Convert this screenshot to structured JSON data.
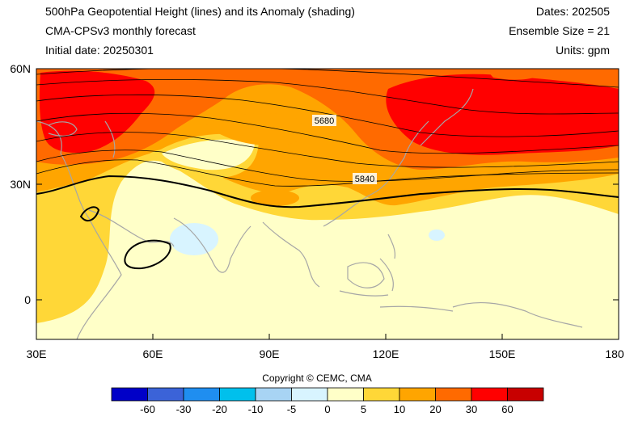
{
  "header": {
    "title_line1": "500hPa Geopotential Height (lines) and its Anomaly (shading)",
    "title_line2": "CMA-CPSv3 monthly forecast",
    "title_line3": "Initial date: 20250301",
    "dates": "Dates: 202505",
    "ensemble": "Ensemble Size = 21",
    "units": "Units: gpm"
  },
  "axes": {
    "y_ticks": [
      "60N",
      "30N",
      "0"
    ],
    "x_ticks": [
      "30E",
      "60E",
      "90E",
      "120E",
      "150E",
      "180"
    ]
  },
  "contour_labels": [
    "5680",
    "5840"
  ],
  "copyright": "Copyright © CEMC, CMA",
  "colorbar": {
    "labels": [
      "-60",
      "-30",
      "-20",
      "-10",
      "-5",
      "0",
      "5",
      "10",
      "20",
      "30",
      "60"
    ],
    "colors": [
      "#0000c8",
      "#3b63d8",
      "#1f8ef0",
      "#00c0ec",
      "#a8d4f4",
      "#d8f4ff",
      "#ffffc8",
      "#ffd737",
      "#ffa500",
      "#ff6a00",
      "#ff0000",
      "#c80000"
    ]
  },
  "chart_data": {
    "type": "map",
    "projection": "lat-lon",
    "lon_range": [
      30,
      180
    ],
    "lat_range": [
      -10,
      60
    ],
    "shading_variable": "500hPa geopotential height anomaly (gpm)",
    "contour_variable": "500hPa geopotential height (gpm)",
    "labeled_contours": [
      5680,
      5840
    ]
  }
}
